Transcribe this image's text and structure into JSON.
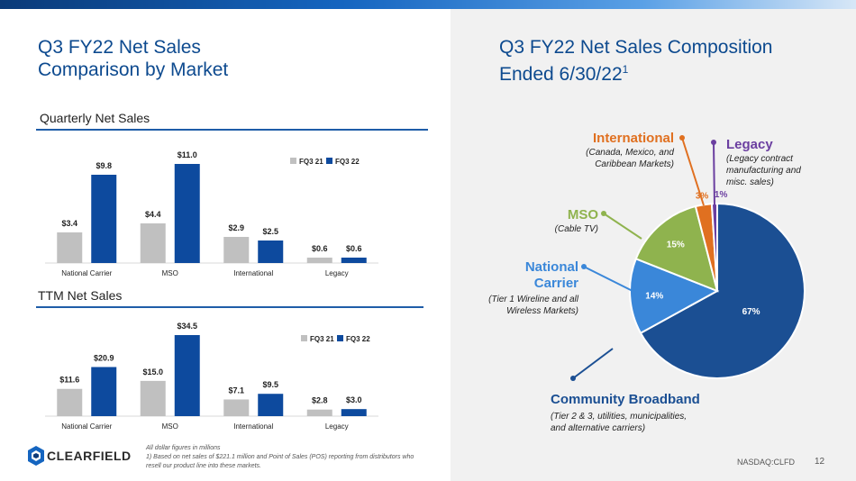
{
  "left": {
    "title_line1": "Q3 FY22 Net Sales",
    "title_line2": "Comparison by Market",
    "quarterly_label": "Quarterly Net Sales",
    "ttm_label": "TTM Net Sales"
  },
  "right": {
    "title_line1": "Q3 FY22 Net Sales Composition",
    "title_line2": "Ended 6/30/22",
    "title_sup": "1"
  },
  "pie_labels": {
    "international": {
      "name": "International",
      "desc1": "(Canada, Mexico, and",
      "desc2": "Caribbean Markets)"
    },
    "legacy": {
      "name": "Legacy",
      "desc1": "(Legacy contract",
      "desc2": "manufacturing and",
      "desc3": "misc. sales)"
    },
    "mso": {
      "name": "MSO",
      "desc1": "(Cable TV)"
    },
    "national": {
      "name1": "National",
      "name2": "Carrier",
      "desc1": "(Tier 1 Wireline and all",
      "desc2": "Wireless Markets)"
    },
    "community": {
      "name": "Community Broadband",
      "desc1": "(Tier 2 & 3, utilities, municipalities,",
      "desc2": "and alternative carriers)"
    }
  },
  "footer": {
    "note1": "All dollar figures in millions",
    "note2": "1) Based on net sales of $221.1 million and Point of Sales (POS) reporting from distributors who resell our product line into these markets.",
    "ticker": "NASDAQ:CLFD",
    "page": "12",
    "logo_text": "CLEARFIELD"
  },
  "colors": {
    "fq21": "#c0c0c0",
    "fq22": "#0d4a9e",
    "community": "#1b4f93",
    "national": "#3a87d9",
    "mso": "#8fb34e",
    "international": "#e07020",
    "legacy": "#6b3fa0",
    "title": "#0d4a8f"
  },
  "chart_data": [
    {
      "type": "bar",
      "title": "Quarterly Net Sales",
      "categories": [
        "National Carrier",
        "MSO",
        "International",
        "Legacy"
      ],
      "series": [
        {
          "name": "FQ3 21",
          "values": [
            3.4,
            4.4,
            2.9,
            0.6
          ],
          "labels": [
            "$3.4",
            "$4.4",
            "$2.9",
            "$0.6"
          ]
        },
        {
          "name": "FQ3 22",
          "values": [
            9.8,
            11.0,
            2.5,
            0.6
          ],
          "labels": [
            "$9.8",
            "$11.0",
            "$2.5",
            "$0.6"
          ]
        }
      ],
      "ylim": [
        0,
        11.0
      ],
      "legend": "top-right"
    },
    {
      "type": "bar",
      "title": "TTM Net Sales",
      "categories": [
        "National Carrier",
        "MSO",
        "International",
        "Legacy"
      ],
      "series": [
        {
          "name": "FQ3 21",
          "values": [
            11.6,
            15.0,
            7.1,
            2.8
          ],
          "labels": [
            "$11.6",
            "$15.0",
            "$7.1",
            "$2.8"
          ]
        },
        {
          "name": "FQ3 22",
          "values": [
            20.9,
            34.5,
            9.5,
            3.0
          ],
          "labels": [
            "$20.9",
            "$34.5",
            "$9.5",
            "$3.0"
          ]
        }
      ],
      "ylim": [
        0,
        34.5
      ],
      "legend": "top-right"
    },
    {
      "type": "pie",
      "categories": [
        "Community Broadband",
        "National Carrier",
        "MSO",
        "International",
        "Legacy"
      ],
      "values": [
        67,
        14,
        15,
        3,
        1
      ],
      "labels": [
        "67%",
        "14%",
        "15%",
        "3%",
        "1%"
      ]
    }
  ]
}
